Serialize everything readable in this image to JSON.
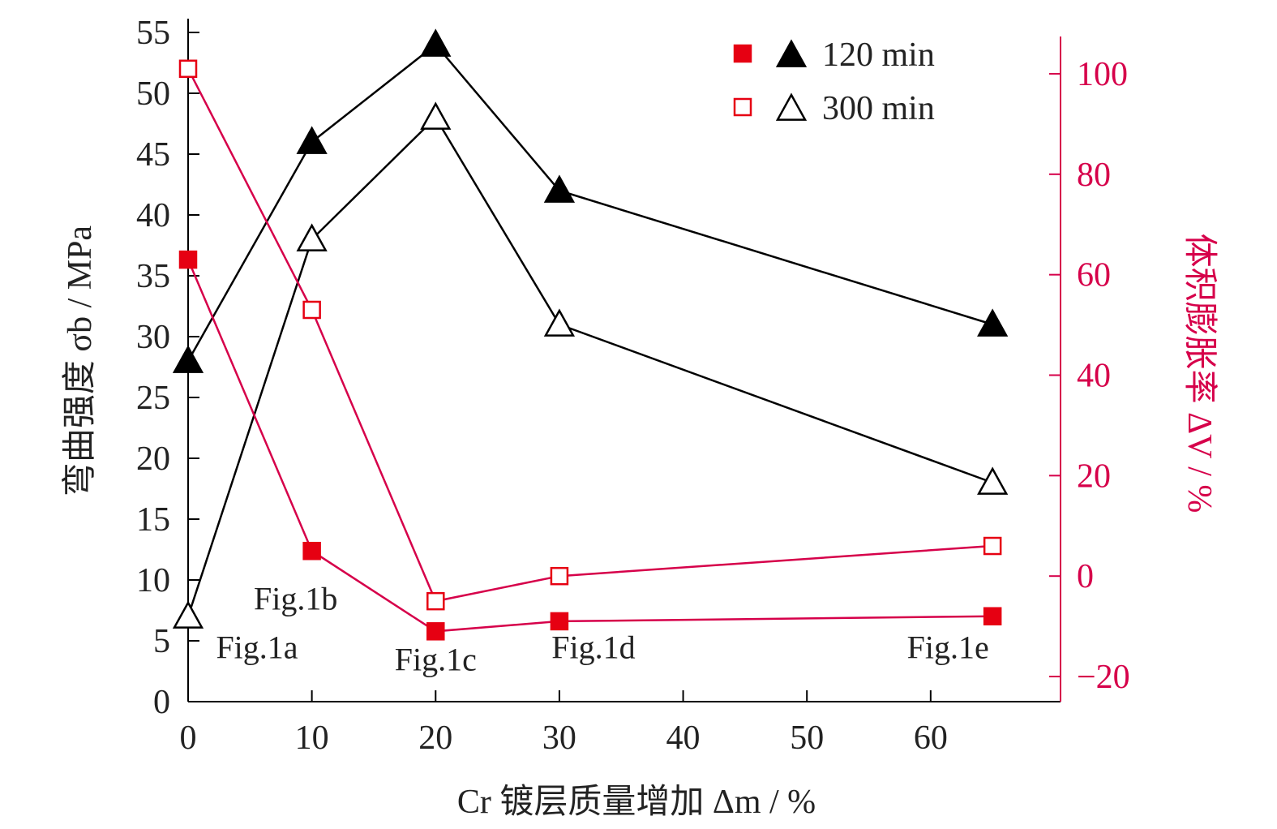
{
  "chart_data": {
    "type": "line",
    "xlabel": "Cr 镀层质量增加 Δm / %",
    "ylabel_left": "弯曲强度 σb / MPa",
    "ylabel_right": "体积膨胀率 ΔV / %",
    "x_ticks": [
      0,
      10,
      20,
      30,
      40,
      50,
      60
    ],
    "x_range": [
      0,
      70
    ],
    "y_left_ticks": [
      0,
      5,
      10,
      15,
      20,
      25,
      30,
      35,
      40,
      45,
      50,
      55
    ],
    "y_left_range": [
      0,
      55
    ],
    "y_right_ticks": [
      -20,
      0,
      20,
      40,
      60,
      80,
      100
    ],
    "y_right_range": [
      -25,
      105
    ],
    "legend": {
      "placement": "top-right",
      "entries": [
        {
          "label": "120 min",
          "markers": [
            "filled-square",
            "filled-triangle"
          ]
        },
        {
          "label": "300 min",
          "markers": [
            "open-square",
            "open-triangle"
          ]
        }
      ]
    },
    "series": [
      {
        "axis": "left",
        "marker": "filled-triangle",
        "color": "#000000",
        "x": [
          0,
          10,
          20,
          30,
          65
        ],
        "values": [
          28,
          46,
          54,
          42,
          31
        ]
      },
      {
        "axis": "left",
        "marker": "open-triangle",
        "color": "#000000",
        "x": [
          0,
          10,
          20,
          30,
          65
        ],
        "values": [
          7,
          38,
          48,
          31,
          18
        ]
      },
      {
        "axis": "right",
        "marker": "filled-square",
        "color": "#e60012",
        "x": [
          0,
          10,
          20,
          30,
          65
        ],
        "values": [
          63,
          5,
          -11,
          -9,
          -8
        ]
      },
      {
        "axis": "right",
        "marker": "open-square",
        "color": "#e60012",
        "x": [
          0,
          10,
          20,
          30,
          65
        ],
        "values": [
          101,
          53,
          -5,
          0,
          6
        ]
      }
    ],
    "annotations": [
      {
        "text": "Fig.1a",
        "x": 0,
        "value_left": 4.5
      },
      {
        "text": "Fig.1b",
        "x": 10,
        "value_left": 8.5
      },
      {
        "text": "Fig.1c",
        "x": 20,
        "value_left": 3.5
      },
      {
        "text": "Fig.1d",
        "x": 30,
        "value_left": 4.5
      },
      {
        "text": "Fig.1e",
        "x": 65,
        "value_left": 4.5
      }
    ],
    "colors": {
      "left_axis": "#000000",
      "right_axis": "#d6004a",
      "lines_right": "#d6004a",
      "markers_right": "#e60012"
    }
  }
}
